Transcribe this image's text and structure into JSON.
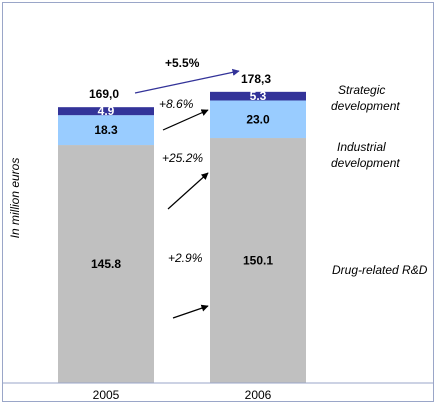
{
  "chart_data": {
    "type": "bar",
    "stacked": true,
    "categories": [
      "2005",
      "2006"
    ],
    "series": [
      {
        "name": "Drug-related R&D",
        "values": [
          145.8,
          150.1
        ],
        "color": "#c0c0c0",
        "label_color": "#000000"
      },
      {
        "name": "Industrial development",
        "values": [
          18.3,
          23.0
        ],
        "color": "#99ccff",
        "label_color": "#000000"
      },
      {
        "name": "Strategic development",
        "values": [
          4.9,
          5.3
        ],
        "color": "#333399",
        "label_color": "#ffffff"
      }
    ],
    "value_labels": [
      [
        "145.8",
        "150.1"
      ],
      [
        "18.3",
        "23.0"
      ],
      [
        "4.9",
        "5.3"
      ]
    ],
    "totals": [
      "169,0",
      "178,3"
    ],
    "growth": {
      "total": "+5.5%",
      "series": [
        "+2.9%",
        "+25.2%",
        "+8.6%"
      ]
    },
    "legend": {
      "drug": "Drug-related R&D",
      "industrial": [
        "Industrial",
        "development"
      ],
      "strategic": [
        "Strategic",
        "development"
      ]
    },
    "ylabel": "In million euros",
    "ylim": [
      0,
      178.3
    ],
    "colors": {
      "arrow_total": "#333399",
      "arrow": "#000000"
    }
  }
}
